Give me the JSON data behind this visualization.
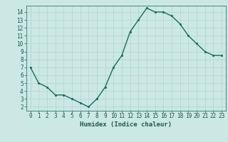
{
  "x": [
    0,
    1,
    2,
    3,
    4,
    5,
    6,
    7,
    8,
    9,
    10,
    11,
    12,
    13,
    14,
    15,
    16,
    17,
    18,
    19,
    20,
    21,
    22,
    23
  ],
  "y": [
    7.0,
    5.0,
    4.5,
    3.5,
    3.5,
    3.0,
    2.5,
    2.0,
    3.0,
    4.5,
    7.0,
    8.5,
    11.5,
    13.0,
    14.5,
    14.0,
    14.0,
    13.5,
    12.5,
    11.0,
    10.0,
    9.0,
    8.5,
    8.5
  ],
  "xlabel": "Humidex (Indice chaleur)",
  "ylabel": "",
  "xlim": [
    -0.5,
    23.5
  ],
  "ylim": [
    1.5,
    14.8
  ],
  "yticks": [
    2,
    3,
    4,
    5,
    6,
    7,
    8,
    9,
    10,
    11,
    12,
    13,
    14
  ],
  "xticks": [
    0,
    1,
    2,
    3,
    4,
    5,
    6,
    7,
    8,
    9,
    10,
    11,
    12,
    13,
    14,
    15,
    16,
    17,
    18,
    19,
    20,
    21,
    22,
    23
  ],
  "line_color": "#1a6b5a",
  "marker_color": "#1a6b5a",
  "bg_color": "#cce8e4",
  "grid_color": "#b0d4cc",
  "axis_color": "#2a7a6a",
  "font_color": "#1a5a4a",
  "tick_font_size": 5.5,
  "xlabel_font_size": 6.5,
  "line_width": 1.0,
  "marker_size": 2.0
}
